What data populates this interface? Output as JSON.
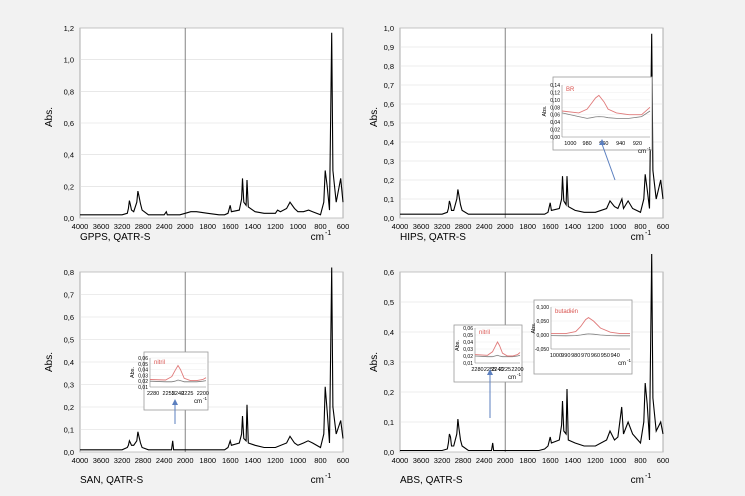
{
  "chart_data": [
    {
      "type": "line",
      "caption": "GPPS, QATR-S",
      "xunit": "cm",
      "xunit_sup": "-1",
      "ylabel": "Abs.",
      "xlim": [
        4000,
        600
      ],
      "ylim": [
        0,
        1.2
      ],
      "xticks": [
        "4000",
        "3600",
        "3200",
        "2800",
        "2400",
        "2000",
        "1800",
        "1600",
        "1400",
        "1200",
        "1000",
        "800",
        "600"
      ],
      "yticks": [
        "0,0",
        "0,2",
        "0,4",
        "0,6",
        "0,8",
        "1,0",
        "1,2"
      ],
      "series": [
        {
          "x": [
            4000,
            3200,
            3100,
            3080,
            3060,
            3040,
            3020,
            2980,
            2920,
            2900,
            2880,
            2850,
            2820,
            2700,
            2400,
            2360,
            2340,
            2300,
            2100,
            2000,
            1950,
            1900,
            1800,
            1700,
            1650,
            1620,
            1601,
            1590,
            1520,
            1500,
            1492,
            1480,
            1460,
            1452,
            1440,
            1380,
            1300,
            1200,
            1180,
            1155,
            1100,
            1070,
            1030,
            1000,
            950,
            905,
            870,
            800,
            770,
            758,
            740,
            720,
            700,
            690,
            660,
            620,
            600
          ],
          "y": [
            0.02,
            0.02,
            0.03,
            0.06,
            0.11,
            0.08,
            0.05,
            0.04,
            0.1,
            0.17,
            0.14,
            0.09,
            0.05,
            0.02,
            0.02,
            0.04,
            0.02,
            0.02,
            0.02,
            0.03,
            0.04,
            0.04,
            0.03,
            0.02,
            0.02,
            0.03,
            0.08,
            0.04,
            0.05,
            0.12,
            0.25,
            0.1,
            0.08,
            0.24,
            0.07,
            0.04,
            0.03,
            0.03,
            0.05,
            0.04,
            0.06,
            0.1,
            0.06,
            0.04,
            0.04,
            0.05,
            0.04,
            0.02,
            0.1,
            0.3,
            0.2,
            0.05,
            1.17,
            0.3,
            0.1,
            0.25,
            0.1
          ]
        }
      ]
    },
    {
      "type": "line",
      "caption": "HIPS, QATR-S",
      "xunit": "cm",
      "xunit_sup": "-1",
      "ylabel": "Abs.",
      "xlim": [
        4000,
        600
      ],
      "ylim": [
        0,
        1.0
      ],
      "xticks": [
        "4000",
        "3600",
        "3200",
        "2800",
        "2400",
        "2000",
        "1800",
        "1600",
        "1400",
        "1200",
        "1000",
        "800",
        "600"
      ],
      "yticks": [
        "0,0",
        "0,1",
        "0,2",
        "0,3",
        "0,4",
        "0,5",
        "0,6",
        "0,7",
        "0,8",
        "0,9",
        "1,0"
      ],
      "series": [
        {
          "x": [
            4000,
            3200,
            3100,
            3080,
            3060,
            3040,
            3020,
            2980,
            2920,
            2900,
            2880,
            2850,
            2820,
            2700,
            2400,
            2000,
            1800,
            1700,
            1650,
            1620,
            1601,
            1590,
            1520,
            1500,
            1492,
            1480,
            1460,
            1452,
            1440,
            1380,
            1300,
            1200,
            1100,
            1070,
            1030,
            1000,
            965,
            950,
            910,
            870,
            800,
            770,
            758,
            740,
            720,
            700,
            690,
            660,
            620,
            600
          ],
          "y": [
            0.02,
            0.02,
            0.03,
            0.05,
            0.09,
            0.07,
            0.04,
            0.04,
            0.1,
            0.15,
            0.12,
            0.07,
            0.04,
            0.02,
            0.02,
            0.02,
            0.02,
            0.02,
            0.02,
            0.03,
            0.08,
            0.04,
            0.05,
            0.1,
            0.22,
            0.09,
            0.07,
            0.22,
            0.06,
            0.04,
            0.03,
            0.03,
            0.05,
            0.09,
            0.06,
            0.05,
            0.1,
            0.05,
            0.09,
            0.05,
            0.03,
            0.1,
            0.23,
            0.15,
            0.05,
            0.97,
            0.25,
            0.1,
            0.2,
            0.1
          ]
        }
      ],
      "inset": {
        "label": "BR",
        "ylabel": "Abs.",
        "xunit": "cm",
        "xunit_sup": "-1",
        "xlim": [
          1010,
          905
        ],
        "ylim": [
          0,
          0.14
        ],
        "xticks": [
          "1000",
          "980",
          "960",
          "940",
          "920"
        ],
        "yticks": [
          "0,00",
          "0,02",
          "0,04",
          "0,06",
          "0,08",
          "0,10",
          "0,12",
          "0,14"
        ],
        "x": [
          1010,
          990,
          980,
          975,
          970,
          966,
          960,
          955,
          945,
          930,
          915,
          905
        ],
        "y_red": [
          0.07,
          0.065,
          0.075,
          0.09,
          0.105,
          0.112,
          0.095,
          0.075,
          0.065,
          0.06,
          0.06,
          0.08
        ],
        "y_gray": [
          0.065,
          0.055,
          0.05,
          0.052,
          0.054,
          0.055,
          0.054,
          0.052,
          0.05,
          0.05,
          0.055,
          0.07
        ]
      }
    },
    {
      "type": "line",
      "caption": "SAN, QATR-S",
      "xunit": "cm",
      "xunit_sup": "-1",
      "ylabel": "Abs.",
      "xlim": [
        4000,
        600
      ],
      "ylim": [
        0,
        0.8
      ],
      "xticks": [
        "4000",
        "3600",
        "3200",
        "2800",
        "2400",
        "2000",
        "1800",
        "1600",
        "1400",
        "1200",
        "1000",
        "800",
        "600"
      ],
      "yticks": [
        "0,0",
        "0,1",
        "0,2",
        "0,3",
        "0,4",
        "0,5",
        "0,6",
        "0,7",
        "0,8"
      ],
      "series": [
        {
          "x": [
            4000,
            3200,
            3100,
            3080,
            3060,
            3040,
            3020,
            2980,
            2920,
            2900,
            2880,
            2850,
            2820,
            2700,
            2400,
            2260,
            2238,
            2220,
            2000,
            1800,
            1700,
            1650,
            1620,
            1601,
            1590,
            1520,
            1500,
            1492,
            1480,
            1460,
            1452,
            1440,
            1380,
            1300,
            1200,
            1100,
            1070,
            1030,
            1000,
            950,
            910,
            870,
            800,
            770,
            758,
            740,
            720,
            700,
            690,
            660,
            620,
            600
          ],
          "y": [
            0.01,
            0.01,
            0.02,
            0.03,
            0.05,
            0.04,
            0.03,
            0.03,
            0.05,
            0.09,
            0.07,
            0.04,
            0.02,
            0.01,
            0.01,
            0.01,
            0.05,
            0.01,
            0.01,
            0.01,
            0.01,
            0.01,
            0.02,
            0.05,
            0.03,
            0.04,
            0.08,
            0.16,
            0.06,
            0.05,
            0.21,
            0.04,
            0.03,
            0.02,
            0.02,
            0.04,
            0.07,
            0.04,
            0.03,
            0.04,
            0.05,
            0.04,
            0.02,
            0.08,
            0.29,
            0.18,
            0.04,
            0.82,
            0.2,
            0.08,
            0.14,
            0.06
          ]
        }
      ],
      "inset": {
        "label": "nitril",
        "ylabel": "Abs.",
        "xunit": "cm",
        "xunit_sup": "-1",
        "xlim": [
          2285,
          2195
        ],
        "ylim": [
          0.01,
          0.06
        ],
        "xticks": [
          "2280",
          "2255",
          "2240",
          "2225",
          "2200"
        ],
        "yticks": [
          "0,01",
          "0,02",
          "0,03",
          "0,04",
          "0,05",
          "0,06"
        ],
        "x": [
          2285,
          2260,
          2250,
          2245,
          2240,
          2236,
          2230,
          2220,
          2210,
          2200,
          2195
        ],
        "y_red": [
          0.023,
          0.022,
          0.028,
          0.038,
          0.047,
          0.04,
          0.025,
          0.021,
          0.021,
          0.023,
          0.026
        ],
        "y_gray": [
          0.02,
          0.019,
          0.019,
          0.02,
          0.022,
          0.021,
          0.019,
          0.019,
          0.019,
          0.02,
          0.021
        ]
      }
    },
    {
      "type": "line",
      "caption": "ABS, QATR-S",
      "xunit": "cm",
      "xunit_sup": "-1",
      "ylabel": "Abs.",
      "xlim": [
        4000,
        600
      ],
      "ylim": [
        0,
        0.6
      ],
      "xticks": [
        "4000",
        "3600",
        "3200",
        "2800",
        "2400",
        "2000",
        "1800",
        "1600",
        "1400",
        "1200",
        "1000",
        "800",
        "600"
      ],
      "yticks": [
        "0,0",
        "0,1",
        "0,2",
        "0,3",
        "0,4",
        "0,5",
        "0,6"
      ],
      "series": [
        {
          "x": [
            4000,
            3200,
            3100,
            3080,
            3060,
            3040,
            3020,
            2980,
            2920,
            2900,
            2880,
            2850,
            2820,
            2700,
            2400,
            2260,
            2238,
            2220,
            2000,
            1800,
            1700,
            1650,
            1620,
            1601,
            1590,
            1520,
            1500,
            1492,
            1480,
            1460,
            1452,
            1440,
            1380,
            1300,
            1200,
            1100,
            1070,
            1030,
            1000,
            966,
            950,
            910,
            870,
            800,
            770,
            758,
            740,
            720,
            700,
            690,
            660,
            620,
            600
          ],
          "y": [
            0.005,
            0.005,
            0.01,
            0.03,
            0.06,
            0.05,
            0.02,
            0.02,
            0.06,
            0.11,
            0.08,
            0.04,
            0.02,
            0.005,
            0.005,
            0.005,
            0.03,
            0.005,
            0.005,
            0.005,
            0.005,
            0.01,
            0.02,
            0.05,
            0.03,
            0.04,
            0.09,
            0.17,
            0.07,
            0.06,
            0.21,
            0.04,
            0.03,
            0.02,
            0.02,
            0.04,
            0.07,
            0.04,
            0.05,
            0.15,
            0.06,
            0.1,
            0.06,
            0.03,
            0.1,
            0.23,
            0.16,
            0.04,
            0.66,
            0.18,
            0.07,
            0.1,
            0.06
          ]
        }
      ],
      "inset": {
        "label": "butadién",
        "ylabel": "Abs.",
        "xunit": "cm",
        "xunit_sup": "-1",
        "xlim": [
          1005,
          925
        ],
        "ylim": [
          -0.05,
          0.1
        ],
        "xticks": [
          "1000",
          "990",
          "980",
          "970",
          "960",
          "950",
          "940"
        ],
        "yticks": [
          "-0,050",
          "0,000",
          "0,050",
          "0,100"
        ],
        "x": [
          1005,
          990,
          980,
          975,
          970,
          967,
          962,
          955,
          945,
          935,
          925
        ],
        "y_red": [
          0.005,
          0.005,
          0.012,
          0.03,
          0.055,
          0.062,
          0.05,
          0.025,
          0.01,
          0.005,
          0.005
        ],
        "y_gray": [
          -0.002,
          -0.003,
          -0.002,
          0.0,
          0.003,
          0.004,
          0.003,
          0.0,
          -0.002,
          -0.003,
          -0.003
        ]
      }
    },
    {
      "type": "table",
      "label": "nitril",
      "ylabel": "Abs.",
      "xunit": "cm",
      "xunit_sup": "-1",
      "xlim": [
        2285,
        2195
      ],
      "ylim": [
        0.01,
        0.06
      ],
      "xticks": [
        "2280",
        "2255",
        "2240",
        "2225",
        "2200"
      ],
      "yticks": [
        "0,01",
        "0,02",
        "0,03",
        "0,04",
        "0,05",
        "0,06"
      ],
      "x": [
        2285,
        2260,
        2250,
        2245,
        2240,
        2236,
        2230,
        2220,
        2210,
        2200,
        2195
      ],
      "y_red": [
        0.022,
        0.021,
        0.026,
        0.033,
        0.04,
        0.035,
        0.024,
        0.02,
        0.02,
        0.022,
        0.025
      ],
      "y_gray": [
        0.02,
        0.019,
        0.019,
        0.02,
        0.021,
        0.02,
        0.019,
        0.019,
        0.019,
        0.02,
        0.021
      ]
    }
  ]
}
